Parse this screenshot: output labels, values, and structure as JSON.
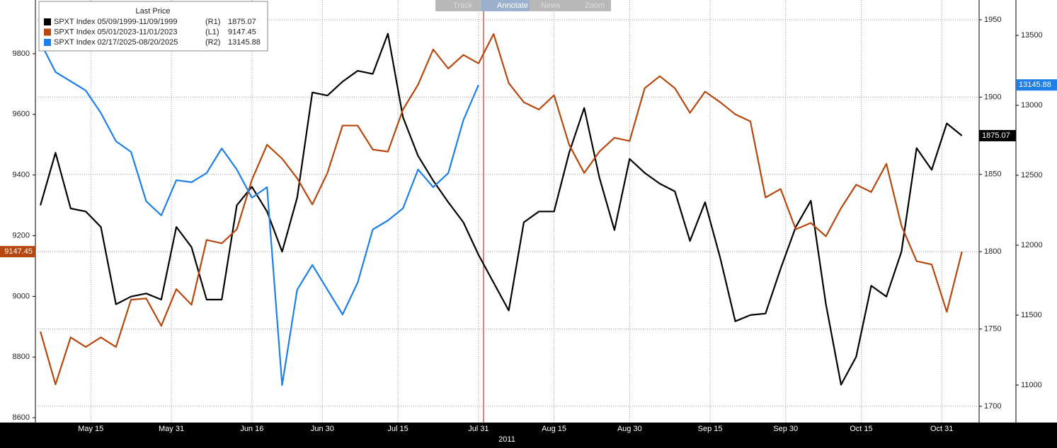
{
  "toolbar": [
    "Track",
    "Annotate",
    "News",
    "Zoom"
  ],
  "chart_data": {
    "type": "line",
    "legend_title": "Last Price",
    "xlabel": "2011",
    "x": [
      "2011-05-05",
      "2011-05-08",
      "2011-05-11",
      "2011-05-14",
      "2011-05-17",
      "2011-05-20",
      "2011-05-23",
      "2011-05-26",
      "2011-05-29",
      "2011-06-01",
      "2011-06-04",
      "2011-06-07",
      "2011-06-10",
      "2011-06-13",
      "2011-06-16",
      "2011-06-19",
      "2011-06-22",
      "2011-06-25",
      "2011-06-28",
      "2011-07-01",
      "2011-07-04",
      "2011-07-07",
      "2011-07-10",
      "2011-07-13",
      "2011-07-16",
      "2011-07-19",
      "2011-07-22",
      "2011-07-25",
      "2011-07-28",
      "2011-07-31",
      "2011-08-03",
      "2011-08-06",
      "2011-08-09",
      "2011-08-12",
      "2011-08-15",
      "2011-08-18",
      "2011-08-21",
      "2011-08-24",
      "2011-08-27",
      "2011-08-30",
      "2011-09-02",
      "2011-09-05",
      "2011-09-08",
      "2011-09-11",
      "2011-09-14",
      "2011-09-17",
      "2011-09-20",
      "2011-09-23",
      "2011-09-26",
      "2011-09-29",
      "2011-10-02",
      "2011-10-05",
      "2011-10-08",
      "2011-10-11",
      "2011-10-14",
      "2011-10-17",
      "2011-10-20",
      "2011-10-23",
      "2011-10-26",
      "2011-10-29",
      "2011-11-01",
      "2011-11-04"
    ],
    "xlim": [
      "2011-05-04",
      "2011-11-07"
    ],
    "xticks": [
      {
        "value": "2011-05-15",
        "label": "May 15"
      },
      {
        "value": "2011-05-31",
        "label": "May 31"
      },
      {
        "value": "2011-06-16",
        "label": "Jun 16"
      },
      {
        "value": "2011-06-30",
        "label": "Jun 30"
      },
      {
        "value": "2011-07-15",
        "label": "Jul 15"
      },
      {
        "value": "2011-07-31",
        "label": "Jul 31"
      },
      {
        "value": "2011-08-15",
        "label": "Aug 15"
      },
      {
        "value": "2011-08-30",
        "label": "Aug 30"
      },
      {
        "value": "2011-09-15",
        "label": "Sep 15"
      },
      {
        "value": "2011-09-30",
        "label": "Sep 30"
      },
      {
        "value": "2011-10-15",
        "label": "Oct 15"
      },
      {
        "value": "2011-10-31",
        "label": "Oct 31"
      }
    ],
    "ylim": [
      8584,
      9977
    ],
    "yticks": [
      8600,
      8800,
      9000,
      9200,
      9400,
      9600,
      9800
    ],
    "y2lim": [
      1689.5,
      1962.8
    ],
    "y2ticks": [
      1700,
      1750,
      1800,
      1850,
      1900,
      1950
    ],
    "y3lim": [
      10732,
      13753
    ],
    "y3ticks": [
      11000,
      11500,
      12000,
      12500,
      13000,
      13500
    ],
    "grid": true,
    "series": [
      {
        "name": "SPXT Index 05/09/1999-11/09/1999",
        "axis_tag": "(R1)",
        "axis": "y2",
        "color": "#000000",
        "values": [
          1830,
          1864,
          1828,
          1826,
          1816,
          1766,
          1771,
          1773,
          1769,
          1816,
          1803,
          1769,
          1769,
          1830,
          1842,
          1826,
          1800,
          1835,
          1903,
          1901,
          1910,
          1917,
          1915,
          1941,
          1887,
          1862,
          1846,
          1832,
          1819,
          1798,
          1780,
          1762,
          1819,
          1826,
          1826,
          1864,
          1893,
          1848,
          1814,
          1860,
          1851,
          1844,
          1839,
          1807,
          1832,
          1796,
          1755,
          1759,
          1760,
          1789,
          1816,
          1833,
          1766,
          1714,
          1732,
          1778,
          1771,
          1800,
          1867,
          1853,
          1883,
          1875.07
        ]
      },
      {
        "name": "SPXT Index 05/01/2023-11/01/2023",
        "axis_tag": "(L1)",
        "axis": "y",
        "color": "#b5470f",
        "values": [
          8884,
          8710,
          8865,
          8833,
          8865,
          8833,
          8989,
          8993,
          8903,
          9024,
          8972,
          9186,
          9175,
          9221,
          9384,
          9500,
          9454,
          9389,
          9303,
          9407,
          9563,
          9563,
          9484,
          9477,
          9616,
          9698,
          9814,
          9751,
          9796,
          9768,
          9865,
          9703,
          9640,
          9616,
          9663,
          9500,
          9407,
          9477,
          9523,
          9512,
          9686,
          9726,
          9686,
          9605,
          9675,
          9640,
          9600,
          9577,
          9326,
          9354,
          9221,
          9242,
          9198,
          9291,
          9368,
          9344,
          9437,
          9233,
          9116,
          9105,
          8949,
          9147.45
        ]
      },
      {
        "name": "SPXT Index 02/17/2025-08/20/2025",
        "axis_tag": "(R2)",
        "axis": "y3",
        "color": "#1e7fe8",
        "values": [
          13450,
          13238,
          13172,
          13106,
          12945,
          12743,
          12667,
          12314,
          12213,
          12465,
          12450,
          12516,
          12692,
          12541,
          12339,
          12415,
          11000,
          11682,
          11859,
          11682,
          11505,
          11733,
          12112,
          12177,
          12263,
          12541,
          12415,
          12516,
          12894,
          13145.88,
          null,
          null,
          null,
          null,
          null,
          null,
          null,
          null,
          null,
          null,
          null,
          null,
          null,
          null,
          null,
          null,
          null,
          null,
          null,
          null,
          null,
          null,
          null,
          null,
          null,
          null,
          null,
          null,
          null,
          null,
          null,
          null
        ]
      }
    ]
  }
}
